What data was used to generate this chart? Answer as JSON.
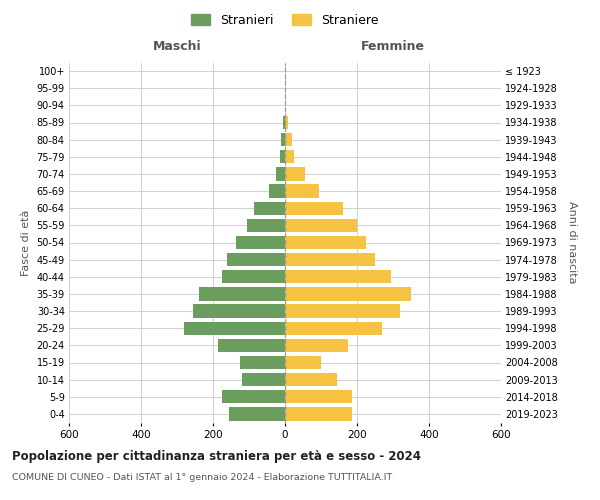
{
  "age_groups": [
    "0-4",
    "5-9",
    "10-14",
    "15-19",
    "20-24",
    "25-29",
    "30-34",
    "35-39",
    "40-44",
    "45-49",
    "50-54",
    "55-59",
    "60-64",
    "65-69",
    "70-74",
    "75-79",
    "80-84",
    "85-89",
    "90-94",
    "95-99",
    "100+"
  ],
  "birth_years": [
    "2019-2023",
    "2014-2018",
    "2009-2013",
    "2004-2008",
    "1999-2003",
    "1994-1998",
    "1989-1993",
    "1984-1988",
    "1979-1983",
    "1974-1978",
    "1969-1973",
    "1964-1968",
    "1959-1963",
    "1954-1958",
    "1949-1953",
    "1944-1948",
    "1939-1943",
    "1934-1938",
    "1929-1933",
    "1924-1928",
    "≤ 1923"
  ],
  "maschi": [
    155,
    175,
    120,
    125,
    185,
    280,
    255,
    240,
    175,
    160,
    135,
    105,
    85,
    45,
    25,
    15,
    10,
    5,
    0,
    0,
    0
  ],
  "femmine": [
    185,
    185,
    145,
    100,
    175,
    270,
    320,
    350,
    295,
    250,
    225,
    200,
    160,
    95,
    55,
    25,
    20,
    8,
    0,
    0,
    0
  ],
  "color_maschi": "#6b9e5e",
  "color_femmine": "#f5c242",
  "title": "Popolazione per cittadinanza straniera per età e sesso - 2024",
  "subtitle": "COMUNE DI CUNEO - Dati ISTAT al 1° gennaio 2024 - Elaborazione TUTTITALIA.IT",
  "xlabel_left": "Maschi",
  "xlabel_right": "Femmine",
  "ylabel_left": "Fasce di età",
  "ylabel_right": "Anni di nascita",
  "legend_maschi": "Stranieri",
  "legend_femmine": "Straniere",
  "xlim": 600,
  "background_color": "#ffffff",
  "grid_color": "#d0d0d0"
}
